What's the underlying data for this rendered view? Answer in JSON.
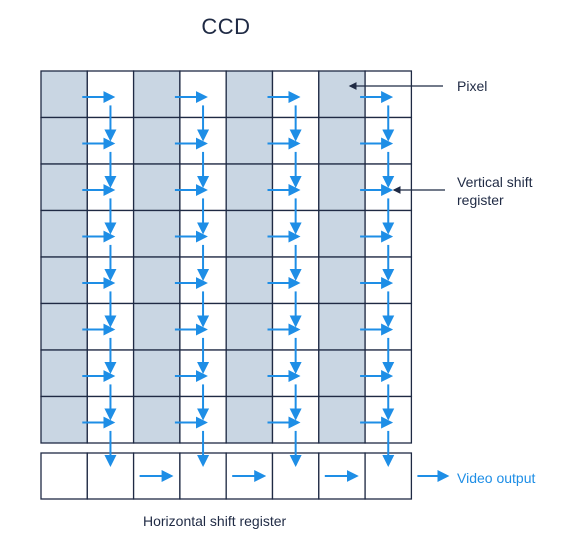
{
  "title": "CCD",
  "labels": {
    "pixel": "Pixel",
    "vertical_shift_register_line1": "Vertical shift",
    "vertical_shift_register_line2": "register",
    "video_output": "Video output",
    "horizontal_shift_register": "Horizontal shift register"
  },
  "grid": {
    "columns": 8,
    "rows": 8,
    "horizontal_register_cells": 8
  },
  "colors": {
    "pixel_fill": "#c9d6e3",
    "register_fill": "#ffffff",
    "grid_line": "#1f2a44",
    "arrow": "#1e8ee6",
    "pointer": "#1f2a44"
  }
}
